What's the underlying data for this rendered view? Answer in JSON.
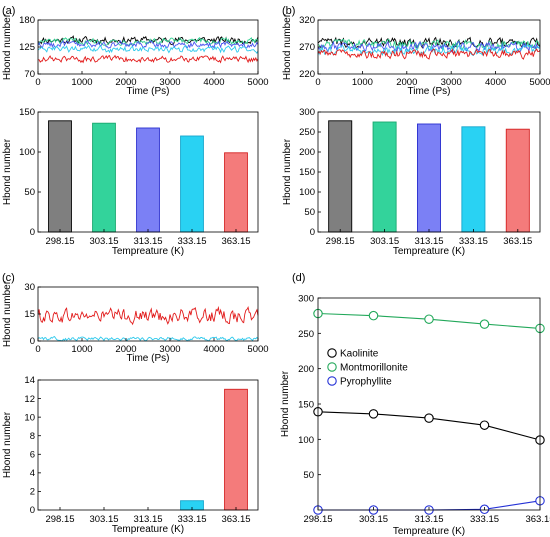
{
  "figure": {
    "panels": [
      "(a)",
      "(b)",
      "(c)",
      "(d)"
    ]
  },
  "chart_data": [
    {
      "id": "a-top",
      "type": "line",
      "panel": "(a)",
      "xlabel": "Time (Ps)",
      "ylabel": "Hbond number",
      "xlim": [
        0,
        5000
      ],
      "ylim": [
        70,
        180
      ],
      "xticks": [
        0,
        1000,
        2000,
        3000,
        4000,
        5000
      ],
      "yticks": [
        70,
        125,
        180
      ],
      "series": [
        {
          "color": "#000000",
          "mean": 139,
          "amp": 11,
          "values_note": "fluctuating"
        },
        {
          "color": "#2ecf8f",
          "mean": 136,
          "amp": 10
        },
        {
          "color": "#4c55f0",
          "mean": 130,
          "amp": 10
        },
        {
          "color": "#2ec9ec",
          "mean": 120,
          "amp": 10
        },
        {
          "color": "#e21b1b",
          "mean": 100,
          "amp": 10
        }
      ]
    },
    {
      "id": "a-bottom",
      "type": "bar",
      "panel": "(a)",
      "xlabel": "Tempreature (K)",
      "ylabel": "Hbond number",
      "ylim": [
        0,
        150
      ],
      "yticks": [
        0,
        50,
        100,
        150
      ],
      "categories": [
        "298.15",
        "303.15",
        "313.15",
        "333.15",
        "363.15"
      ],
      "values": [
        139,
        136,
        130,
        120,
        99
      ],
      "fills": [
        "#7f7f7f",
        "#33d39b",
        "#7b80f5",
        "#29d2f3",
        "#f47b7b"
      ],
      "strokes": [
        "#000000",
        "#19a86f",
        "#2b2fcf",
        "#15a6cc",
        "#d42222"
      ]
    },
    {
      "id": "b-top",
      "type": "line",
      "panel": "(b)",
      "xlabel": "Time (Ps)",
      "ylabel": "Hbond number",
      "xlim": [
        0,
        5000
      ],
      "ylim": [
        220,
        320
      ],
      "xticks": [
        0,
        1000,
        2000,
        3000,
        4000,
        5000
      ],
      "yticks": [
        220,
        270,
        320
      ],
      "series": [
        {
          "color": "#000000",
          "mean": 278,
          "amp": 13
        },
        {
          "color": "#2ecf8f",
          "mean": 275,
          "amp": 13
        },
        {
          "color": "#4c55f0",
          "mean": 270,
          "amp": 13
        },
        {
          "color": "#2ec9ec",
          "mean": 263,
          "amp": 12
        },
        {
          "color": "#e21b1b",
          "mean": 257,
          "amp": 12
        }
      ]
    },
    {
      "id": "b-bottom",
      "type": "bar",
      "panel": "(b)",
      "xlabel": "Tempreature (K)",
      "ylabel": "Hbond number",
      "ylim": [
        0,
        300
      ],
      "yticks": [
        0,
        50,
        100,
        150,
        200,
        250,
        300
      ],
      "categories": [
        "298.15",
        "303.15",
        "313.15",
        "333.15",
        "363.15"
      ],
      "values": [
        278,
        275,
        270,
        263,
        257
      ],
      "fills": [
        "#7f7f7f",
        "#33d39b",
        "#7b80f5",
        "#29d2f3",
        "#f47b7b"
      ],
      "strokes": [
        "#000000",
        "#19a86f",
        "#2b2fcf",
        "#15a6cc",
        "#d42222"
      ]
    },
    {
      "id": "c-top",
      "type": "line",
      "panel": "(c)",
      "xlabel": "Time (Ps)",
      "ylabel": "Hbond number",
      "xlim": [
        0,
        5000
      ],
      "ylim": [
        0,
        30
      ],
      "xticks": [
        0,
        1000,
        2000,
        3000,
        4000,
        5000
      ],
      "yticks": [
        0,
        15,
        30
      ],
      "series": [
        {
          "color": "#e21b1b",
          "mean": 14,
          "amp": 6
        },
        {
          "color": "#2ec9ec",
          "mean": 1.2,
          "amp": 1.6
        }
      ]
    },
    {
      "id": "c-bottom",
      "type": "bar",
      "panel": "(c)",
      "xlabel": "Tempreature (K)",
      "ylabel": "Hbond number",
      "ylim": [
        0,
        14
      ],
      "yticks": [
        0,
        2,
        4,
        6,
        8,
        10,
        12,
        14
      ],
      "categories": [
        "298.15",
        "303.15",
        "313.15",
        "333.15",
        "363.15"
      ],
      "values": [
        0,
        0,
        0,
        1,
        13
      ],
      "fills": [
        "#7f7f7f",
        "#33d39b",
        "#7b80f5",
        "#29d2f3",
        "#f47b7b"
      ],
      "strokes": [
        "#000000",
        "#19a86f",
        "#2b2fcf",
        "#15a6cc",
        "#d42222"
      ]
    },
    {
      "id": "d",
      "type": "line",
      "panel": "(d)",
      "xlabel": "Tempreature (K)",
      "ylabel": "Hbond number",
      "ylim": [
        0,
        300
      ],
      "yticks": [
        50,
        100,
        150,
        200,
        250,
        300
      ],
      "categories": [
        "298.15",
        "303.15",
        "313.15",
        "333.15",
        "363.15"
      ],
      "legend_position": "left",
      "series": [
        {
          "name": "Kaolinite",
          "color": "#000000",
          "values": [
            139,
            136,
            130,
            120,
            99
          ]
        },
        {
          "name": "Montmorillonite",
          "color": "#22a85a",
          "values": [
            278,
            275,
            270,
            263,
            257
          ]
        },
        {
          "name": "Pyrophyllite",
          "color": "#2431d6",
          "values": [
            0,
            0,
            0,
            1,
            13
          ]
        }
      ]
    }
  ]
}
